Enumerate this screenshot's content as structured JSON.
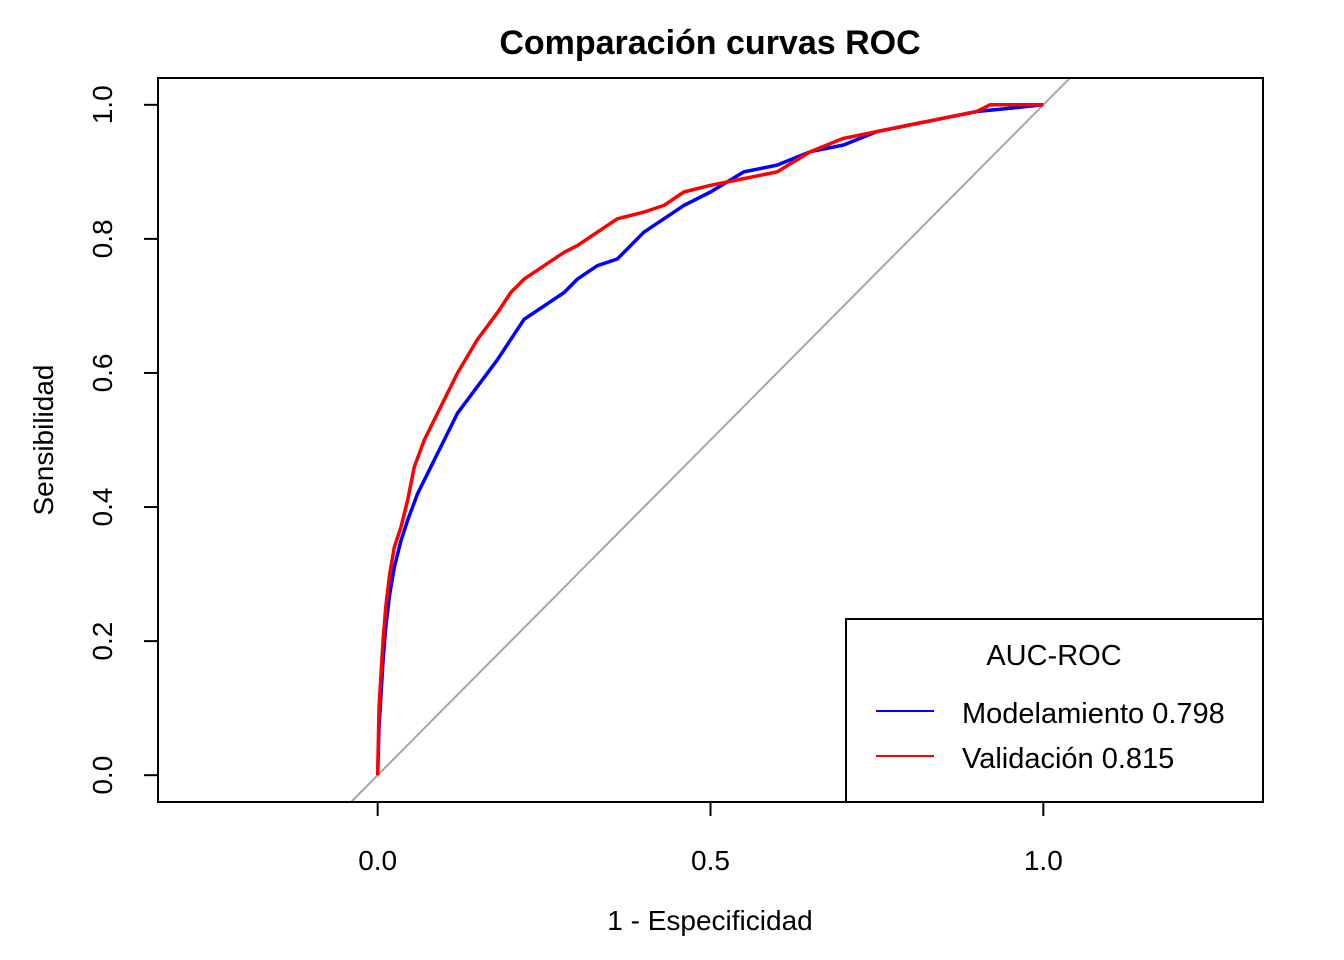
{
  "chart_data": {
    "type": "line",
    "title": "Comparación curvas ROC",
    "xlabel": "1 - Especificidad",
    "ylabel": "Sensibilidad",
    "xlim": [
      -0.33,
      1.33
    ],
    "ylim": [
      -0.04,
      1.04
    ],
    "xticks": [
      0.0,
      0.5,
      1.0
    ],
    "xtick_labels": [
      "0.0",
      "0.5",
      "1.0"
    ],
    "yticks": [
      0.0,
      0.2,
      0.4,
      0.6,
      0.8,
      1.0
    ],
    "ytick_labels": [
      "0.0",
      "0.2",
      "0.4",
      "0.6",
      "0.8",
      "1.0"
    ],
    "grid": false,
    "reference_line": {
      "intercept": 0,
      "slope": 1,
      "color": "#a6a6a6"
    },
    "legend": {
      "title": "AUC-ROC",
      "position": "bottom-right",
      "entries": [
        {
          "label": "Modelamiento 0.798",
          "color": "#0000ff"
        },
        {
          "label": "Validación 0.815",
          "color": "#ff0000"
        }
      ]
    },
    "series": [
      {
        "color": "#0000ff",
        "x": [
          0.0,
          0.002,
          0.005,
          0.008,
          0.012,
          0.018,
          0.025,
          0.035,
          0.045,
          0.06,
          0.08,
          0.1,
          0.12,
          0.15,
          0.18,
          0.2,
          0.22,
          0.25,
          0.28,
          0.3,
          0.33,
          0.36,
          0.38,
          0.4,
          0.43,
          0.46,
          0.5,
          0.55,
          0.6,
          0.65,
          0.7,
          0.75,
          0.8,
          0.85,
          0.9,
          0.95,
          1.0
        ],
        "y": [
          0.0,
          0.07,
          0.12,
          0.17,
          0.22,
          0.27,
          0.31,
          0.35,
          0.38,
          0.42,
          0.46,
          0.5,
          0.54,
          0.58,
          0.62,
          0.65,
          0.68,
          0.7,
          0.72,
          0.74,
          0.76,
          0.77,
          0.79,
          0.81,
          0.83,
          0.85,
          0.87,
          0.9,
          0.91,
          0.93,
          0.94,
          0.96,
          0.97,
          0.98,
          0.99,
          0.995,
          1.0
        ]
      },
      {
        "color": "#ff0000",
        "x": [
          0.0,
          0.002,
          0.005,
          0.008,
          0.012,
          0.018,
          0.025,
          0.035,
          0.045,
          0.055,
          0.07,
          0.08,
          0.1,
          0.12,
          0.15,
          0.18,
          0.2,
          0.22,
          0.25,
          0.28,
          0.3,
          0.33,
          0.36,
          0.4,
          0.43,
          0.46,
          0.5,
          0.55,
          0.6,
          0.65,
          0.7,
          0.75,
          0.8,
          0.85,
          0.9,
          0.92,
          0.95,
          1.0
        ],
        "y": [
          0.0,
          0.1,
          0.15,
          0.2,
          0.25,
          0.3,
          0.34,
          0.37,
          0.41,
          0.46,
          0.5,
          0.52,
          0.56,
          0.6,
          0.65,
          0.69,
          0.72,
          0.74,
          0.76,
          0.78,
          0.79,
          0.81,
          0.83,
          0.84,
          0.85,
          0.87,
          0.88,
          0.89,
          0.9,
          0.93,
          0.95,
          0.96,
          0.97,
          0.98,
          0.99,
          1.0,
          1.0,
          1.0
        ]
      }
    ]
  }
}
